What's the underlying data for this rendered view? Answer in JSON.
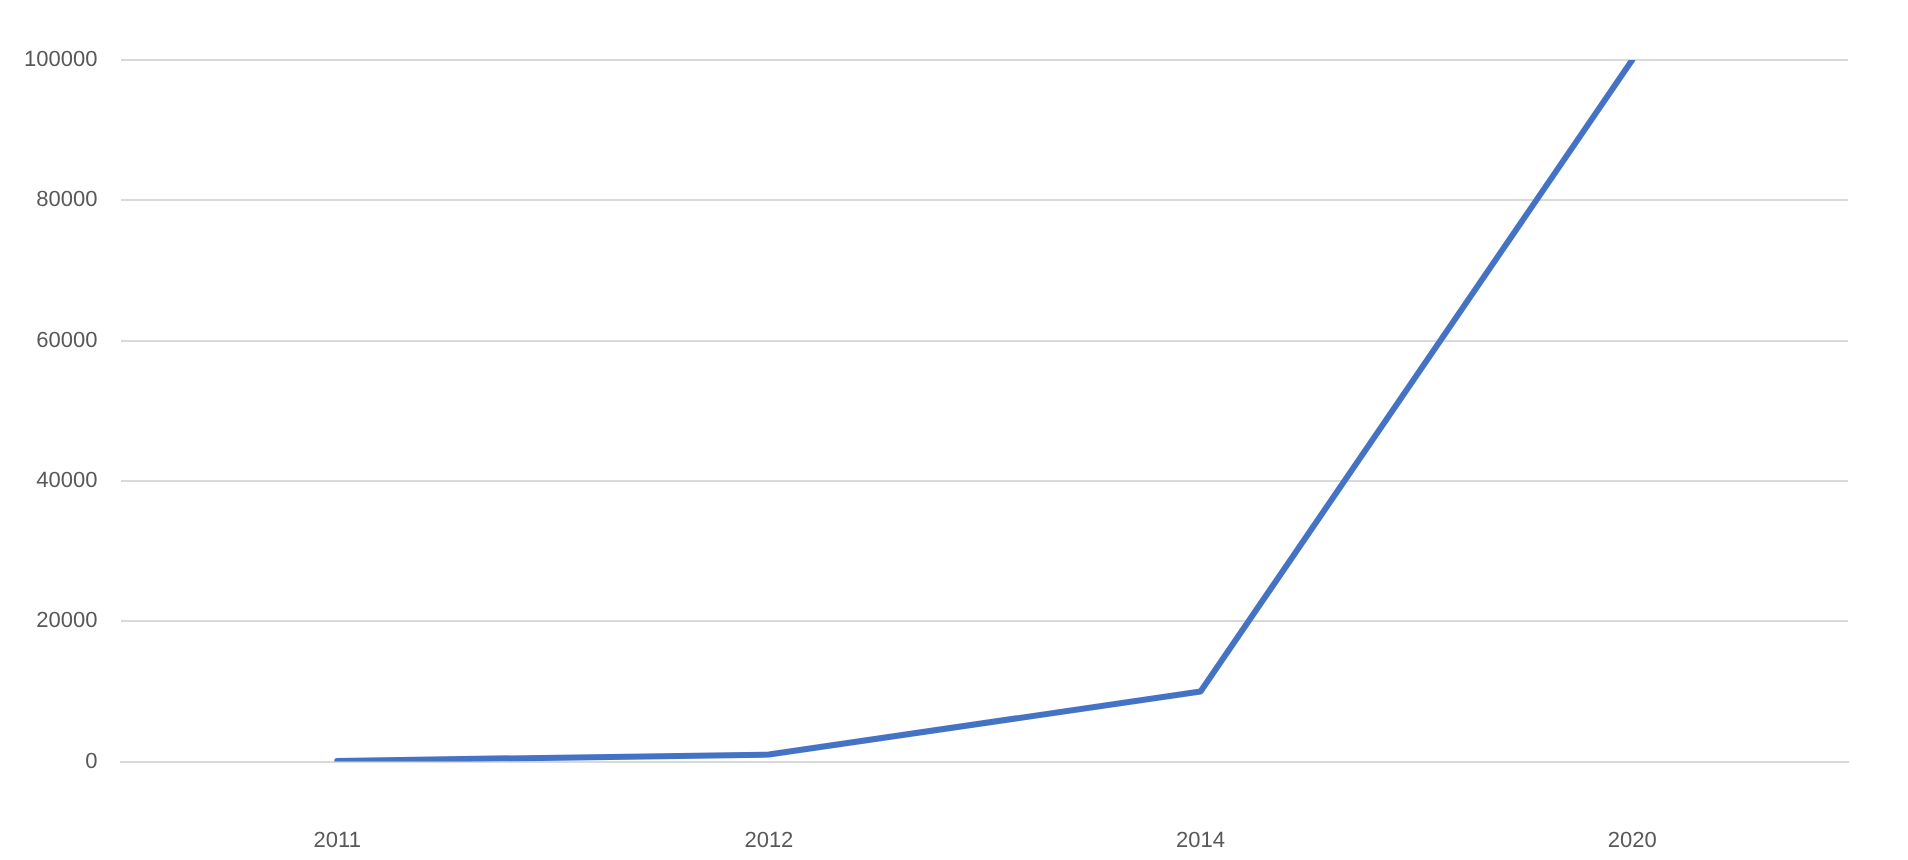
{
  "chart_data": {
    "type": "line",
    "categories": [
      "2011",
      "2012",
      "2014",
      "2020"
    ],
    "series": [
      {
        "color": "#4472c4",
        "values": [
          100,
          1000,
          10000,
          100000
        ]
      }
    ],
    "ylim": [
      0,
      100000
    ],
    "yticks": [
      0,
      20000,
      40000,
      60000,
      80000,
      100000
    ],
    "grid": "y",
    "legend": false,
    "marker": "none",
    "line_style": "solid"
  }
}
